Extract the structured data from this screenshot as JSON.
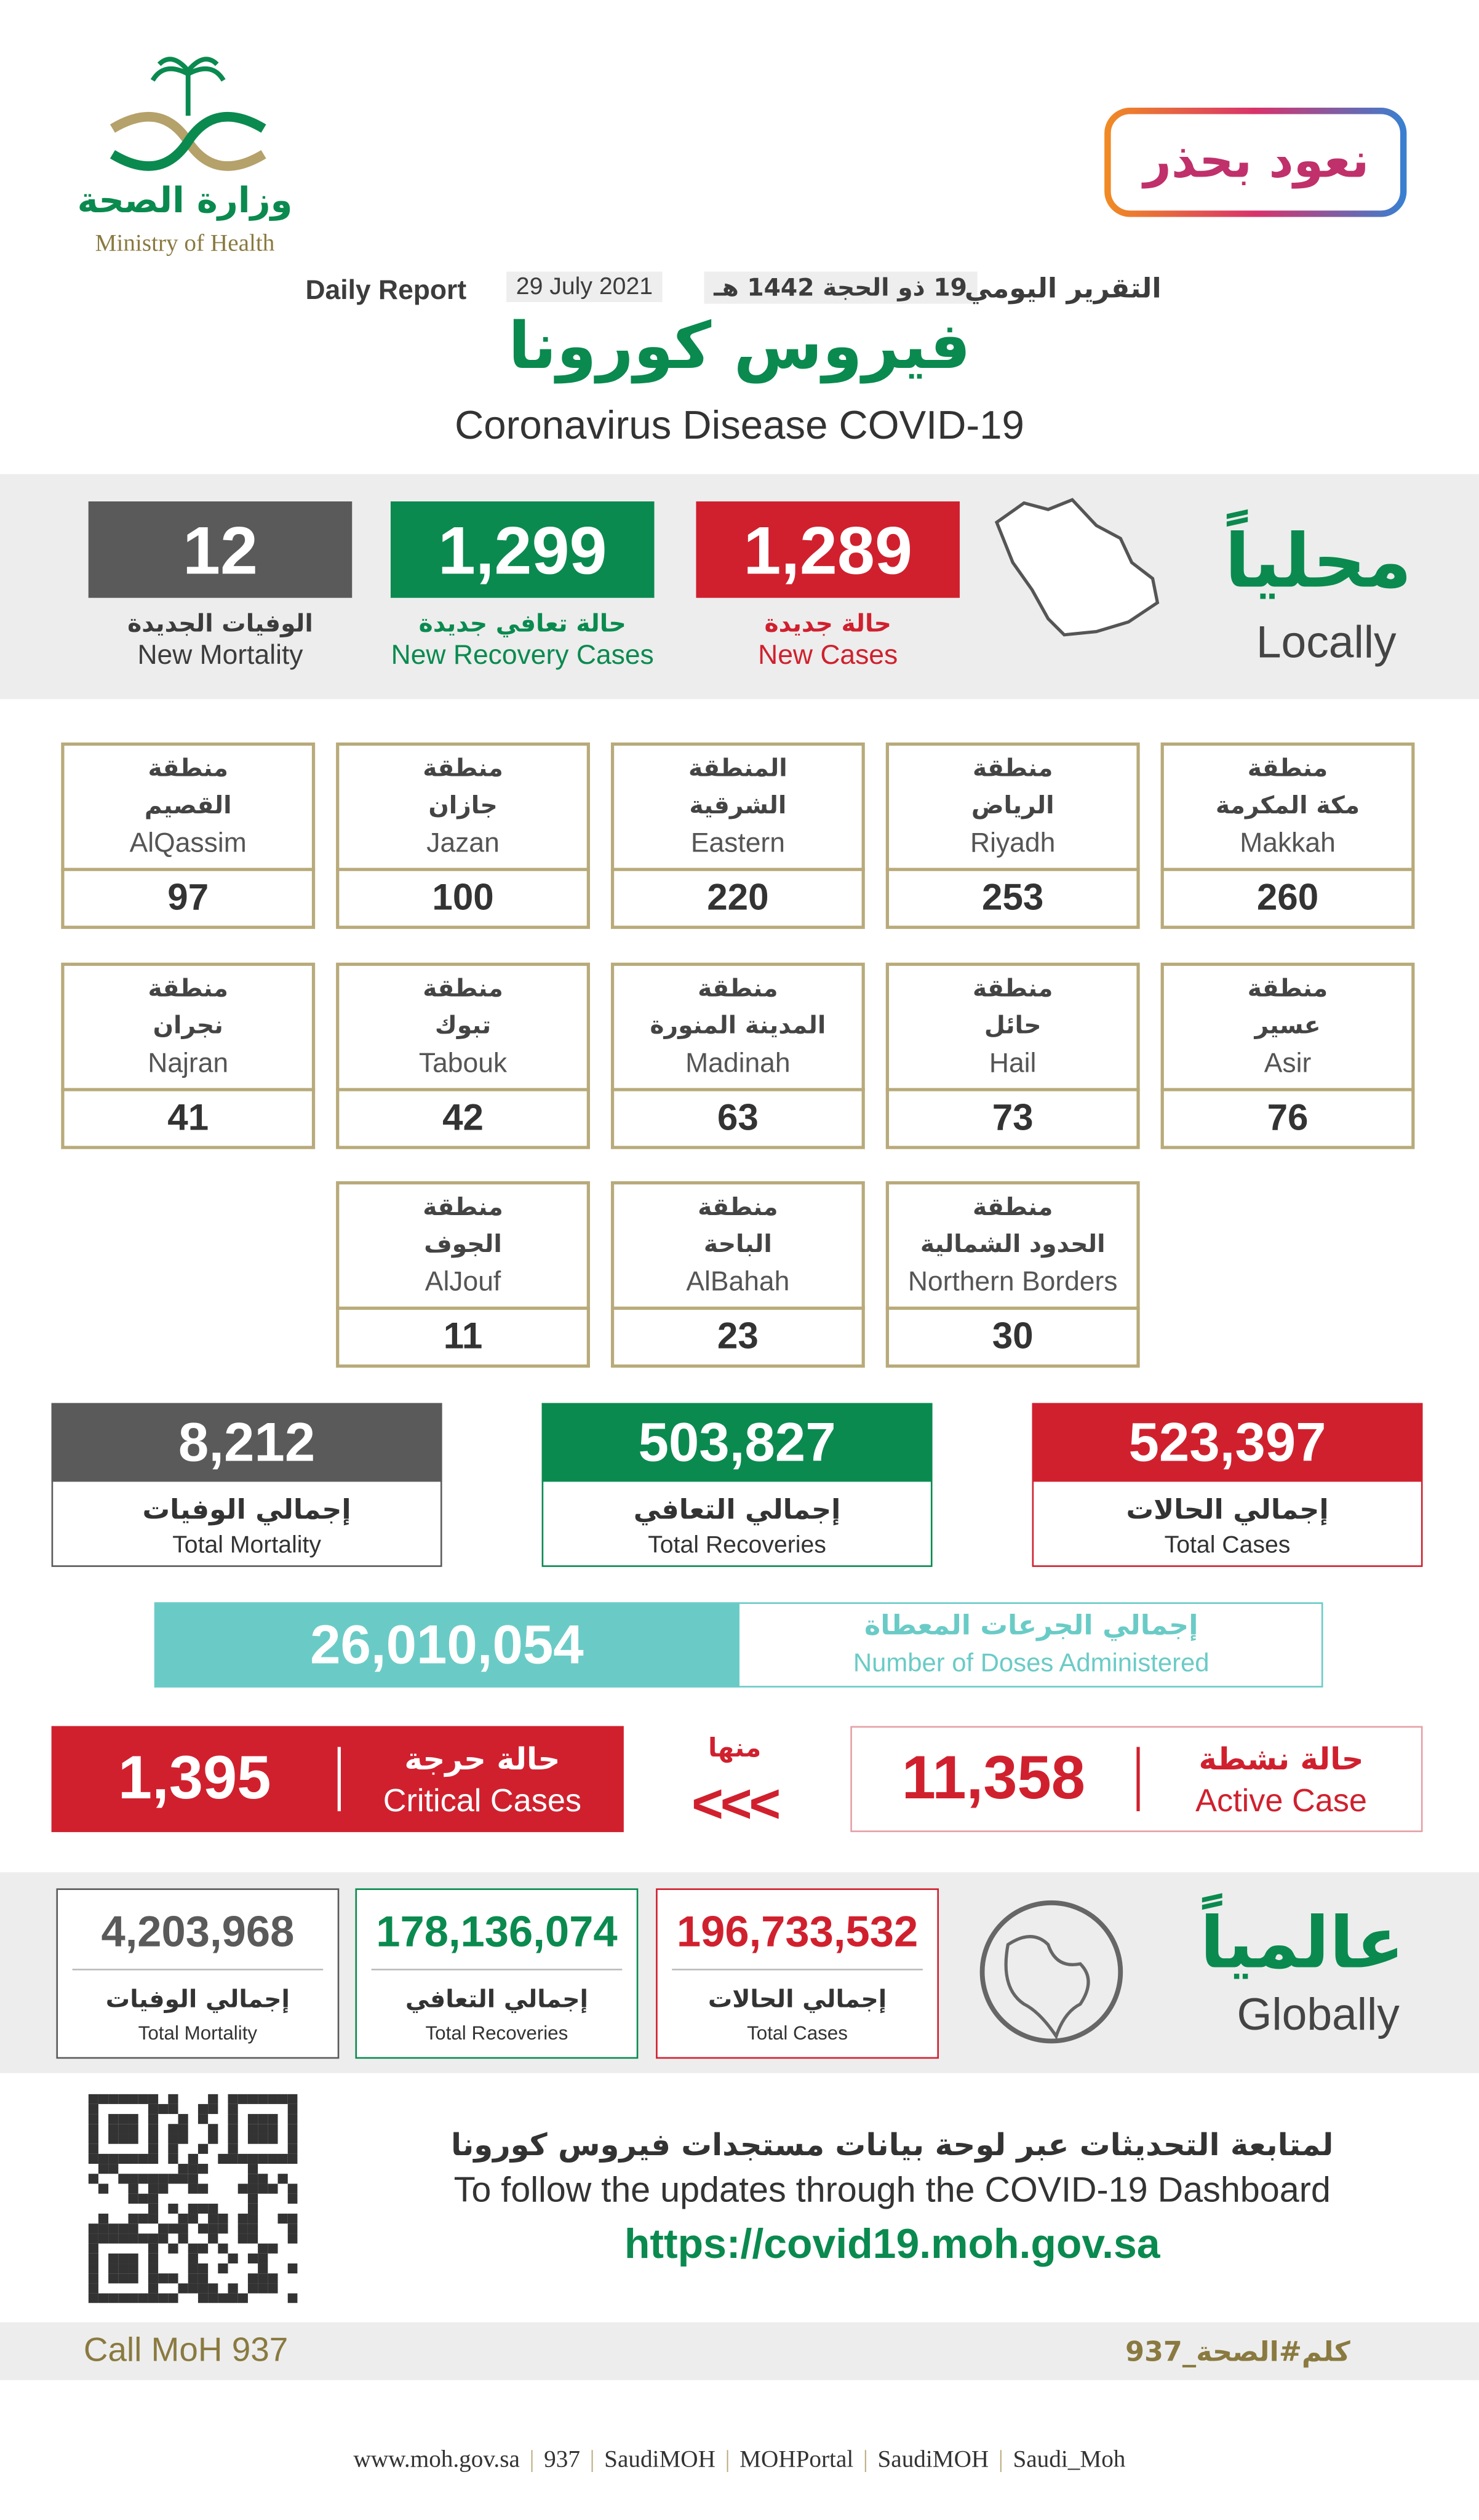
{
  "header": {
    "ministry_ar": "وزارة الصحة",
    "ministry_en": "Ministry of Health",
    "campaign": "نعود بحذر",
    "report_en": "Daily Report",
    "date_en": "29 July 2021",
    "date_hijri": "19 ذو الحجة 1442 هـ",
    "report_ar": "التقرير اليومي",
    "title_ar": "فيروس كورونا",
    "title_en": "Coronavirus Disease COVID-19"
  },
  "locally": {
    "title_ar": "محلياً",
    "title_en": "Locally",
    "stats": [
      {
        "value": "1,289",
        "label_ar": "حالة جديدة",
        "label_en": "New Cases"
      },
      {
        "value": "1,299",
        "label_ar": "حالة تعافي جديدة",
        "label_en": "New Recovery Cases"
      },
      {
        "value": "12",
        "label_ar": "الوفيات الجديدة",
        "label_en": "New Mortality"
      }
    ]
  },
  "regions": [
    {
      "prefix": "منطقة",
      "name_ar": "مكة المكرمة",
      "name_en": "Makkah",
      "value": "260"
    },
    {
      "prefix": "منطقة",
      "name_ar": "الرياض",
      "name_en": "Riyadh",
      "value": "253"
    },
    {
      "prefix": "المنطقة",
      "name_ar": "الشرقية",
      "name_en": "Eastern",
      "value": "220"
    },
    {
      "prefix": "منطقة",
      "name_ar": "جازان",
      "name_en": "Jazan",
      "value": "100"
    },
    {
      "prefix": "منطقة",
      "name_ar": "القصيم",
      "name_en": "AlQassim",
      "value": "97"
    },
    {
      "prefix": "منطقة",
      "name_ar": "عسير",
      "name_en": "Asir",
      "value": "76"
    },
    {
      "prefix": "منطقة",
      "name_ar": "حائل",
      "name_en": "Hail",
      "value": "73"
    },
    {
      "prefix": "منطقة",
      "name_ar": "المدينة المنورة",
      "name_en": "Madinah",
      "value": "63"
    },
    {
      "prefix": "منطقة",
      "name_ar": "تبوك",
      "name_en": "Tabouk",
      "value": "42"
    },
    {
      "prefix": "منطقة",
      "name_ar": "نجران",
      "name_en": "Najran",
      "value": "41"
    },
    {
      "prefix": "منطقة",
      "name_ar": "الحدود الشمالية",
      "name_en": "Northern Borders",
      "value": "30"
    },
    {
      "prefix": "منطقة",
      "name_ar": "الباحة",
      "name_en": "AlBahah",
      "value": "23"
    },
    {
      "prefix": "منطقة",
      "name_ar": "الجوف",
      "name_en": "AlJouf",
      "value": "11"
    }
  ],
  "totals": [
    {
      "value": "523,397",
      "label_ar": "إجمالي الحالات",
      "label_en": "Total Cases"
    },
    {
      "value": "503,827",
      "label_ar": "إجمالي التعافي",
      "label_en": "Total Recoveries"
    },
    {
      "value": "8,212",
      "label_ar": "إجمالي الوفيات",
      "label_en": "Total Mortality"
    }
  ],
  "doses": {
    "value": "26,010,054",
    "label_ar": "إجمالي الجرعات المعطاة",
    "label_en": "Number of Doses Administered"
  },
  "active": {
    "value": "11,358",
    "label_ar": "حالة نشطة",
    "label_en": "Active Case"
  },
  "of_which": "منها",
  "arrows": "<<<",
  "critical": {
    "value": "1,395",
    "label_ar": "حالة حرجة",
    "label_en": "Critical Cases"
  },
  "globally": {
    "title_ar": "عالمياً",
    "title_en": "Globally",
    "stats": [
      {
        "value": "196,733,532",
        "label_ar": "إجمالي الحالات",
        "label_en": "Total Cases"
      },
      {
        "value": "178,136,074",
        "label_ar": "إجمالي التعافي",
        "label_en": "Total Recoveries"
      },
      {
        "value": "4,203,968",
        "label_ar": "إجمالي الوفيات",
        "label_en": "Total Mortality"
      }
    ]
  },
  "dashboard": {
    "text_ar": "لمتابعة التحديثات عبر لوحة بيانات مستجدات فيروس كورونا",
    "text_en": "To follow the updates through the COVID-19 Dashboard",
    "url": "https://covid19.moh.gov.sa"
  },
  "call": {
    "en": "Call MoH 937",
    "ar": "كلم#الصحة_937"
  },
  "footer": [
    "www.moh.gov.sa",
    "937",
    "SaudiMOH",
    "MOHPortal",
    "SaudiMOH",
    "Saudi_Moh"
  ]
}
